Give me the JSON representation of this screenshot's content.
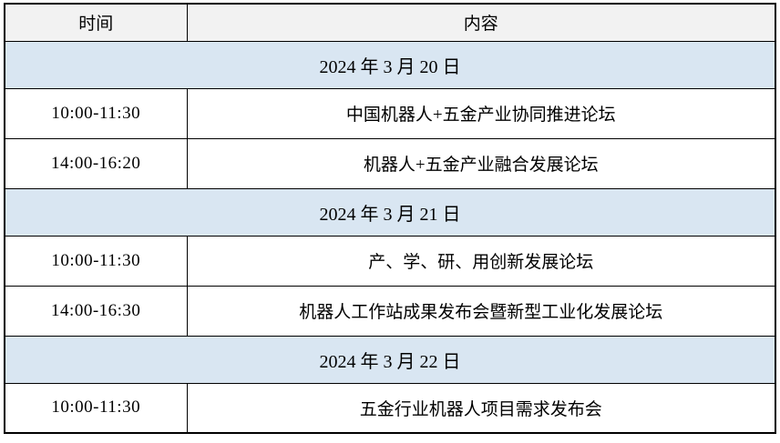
{
  "table": {
    "header": {
      "time": "时间",
      "content": "内容"
    },
    "sections": [
      {
        "date": "2024 年 3 月 20 日",
        "rows": [
          {
            "time": "10:00-11:30",
            "content": "中国机器人+五金产业协同推进论坛"
          },
          {
            "time": "14:00-16:20",
            "content": "机器人+五金产业融合发展论坛"
          }
        ]
      },
      {
        "date": "2024 年 3 月 21 日",
        "rows": [
          {
            "time": "10:00-11:30",
            "content": "产、学、研、用创新发展论坛"
          },
          {
            "time": "14:00-16:30",
            "content": "机器人工作站成果发布会暨新型工业化发展论坛"
          }
        ]
      },
      {
        "date": "2024 年 3 月 22 日",
        "rows": [
          {
            "time": "10:00-11:30",
            "content": "五金行业机器人项目需求发布会"
          }
        ]
      }
    ],
    "colors": {
      "border": "#000000",
      "header_bg": "#f2f2f2",
      "date_bg": "#d9e6f2",
      "row_bg": "#ffffff",
      "text": "#000000"
    }
  }
}
